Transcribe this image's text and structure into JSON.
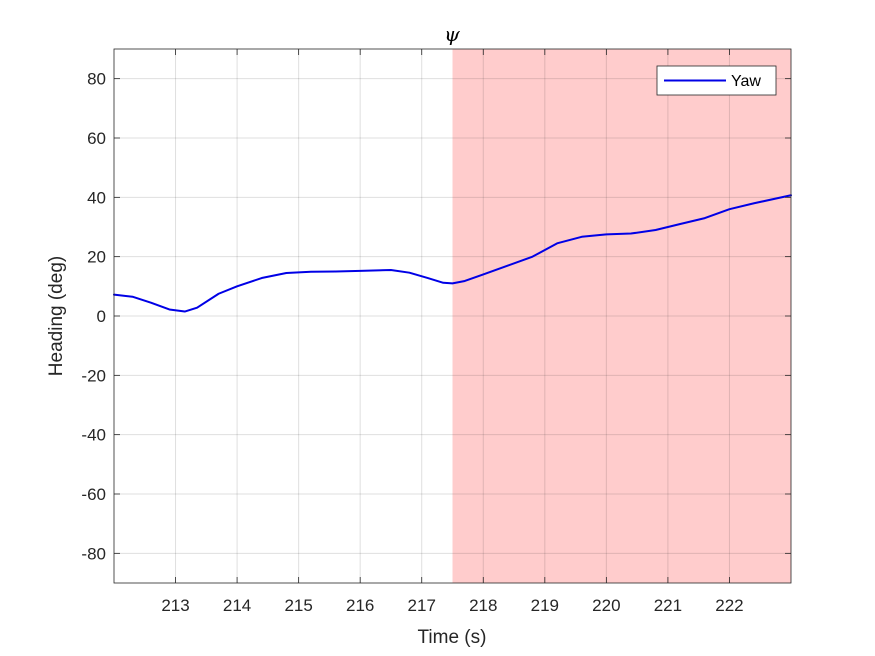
{
  "chart_data": {
    "type": "line",
    "title": "ψ",
    "xlabel": "Time (s)",
    "ylabel": "Heading (deg)",
    "xlim": [
      212.0,
      223.0
    ],
    "ylim": [
      -90,
      90
    ],
    "xticks": [
      213,
      214,
      215,
      216,
      217,
      218,
      219,
      220,
      221,
      222
    ],
    "yticks": [
      -80,
      -60,
      -40,
      -20,
      0,
      20,
      40,
      60,
      80
    ],
    "grid": true,
    "legend_position": "top-right",
    "highlight_region": {
      "x_start": 217.5,
      "x_end": 223.0,
      "color": "#ffcccc"
    },
    "series": [
      {
        "name": "Yaw",
        "color": "#0000e6",
        "x": [
          212.0,
          212.3,
          212.6,
          212.9,
          213.15,
          213.35,
          213.7,
          214.0,
          214.4,
          214.8,
          215.2,
          215.6,
          216.0,
          216.5,
          216.8,
          217.1,
          217.35,
          217.5,
          217.7,
          218.0,
          218.4,
          218.8,
          219.2,
          219.6,
          220.0,
          220.4,
          220.8,
          221.2,
          221.6,
          222.0,
          222.4,
          223.0
        ],
        "values": [
          7.2,
          6.5,
          4.5,
          2.2,
          1.5,
          2.8,
          7.5,
          10.0,
          12.8,
          14.5,
          14.9,
          15.0,
          15.2,
          15.5,
          14.6,
          12.8,
          11.2,
          11.0,
          11.8,
          14.0,
          17.0,
          20.0,
          24.5,
          26.7,
          27.5,
          27.8,
          29.0,
          31.0,
          33.0,
          36.0,
          38.0,
          40.7
        ]
      }
    ]
  }
}
